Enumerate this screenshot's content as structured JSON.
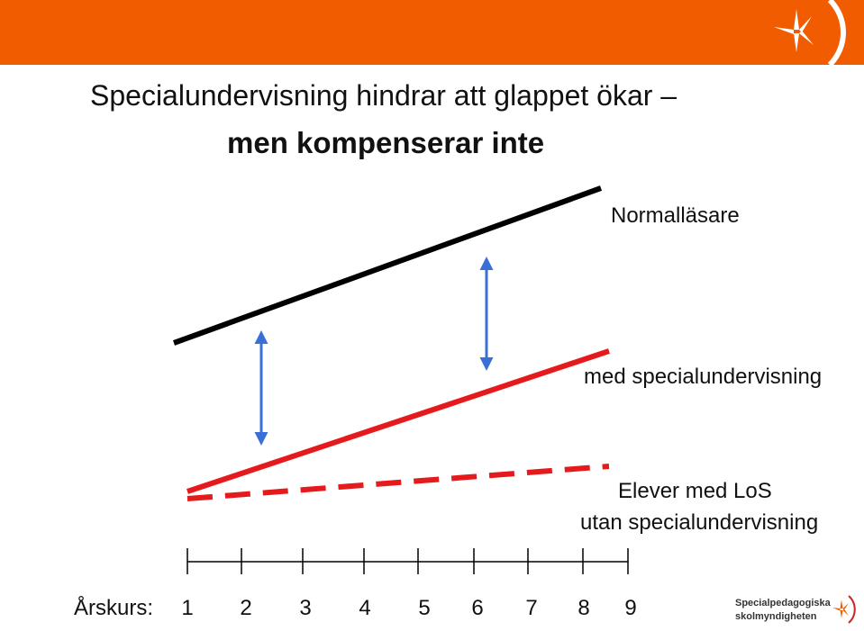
{
  "header": {
    "title_line1": "Specialundervisning hindrar att glappet ökar –",
    "title_line2": "men kompenserar inte"
  },
  "colors": {
    "header_bar": "#f25c00",
    "normal_line": "#000000",
    "special_line": "#e41a1c",
    "arrow": "#3a6fd8"
  },
  "labels": {
    "normal_readers": "Normalläsare",
    "with_special": "med specialundervisning",
    "los_line1": "Elever med LoS",
    "los_line2": "utan specialundervisning"
  },
  "axis": {
    "title": "Årskurs:",
    "ticks": [
      "1",
      "2",
      "3",
      "4",
      "5",
      "6",
      "7",
      "8",
      "9"
    ]
  },
  "footer": {
    "logo_line1": "Specialpedagogiska",
    "logo_line2": "skolmyndigheten"
  },
  "icons": {
    "header_logo": "star-logo-icon",
    "footer_logo": "star-logo-icon"
  }
}
